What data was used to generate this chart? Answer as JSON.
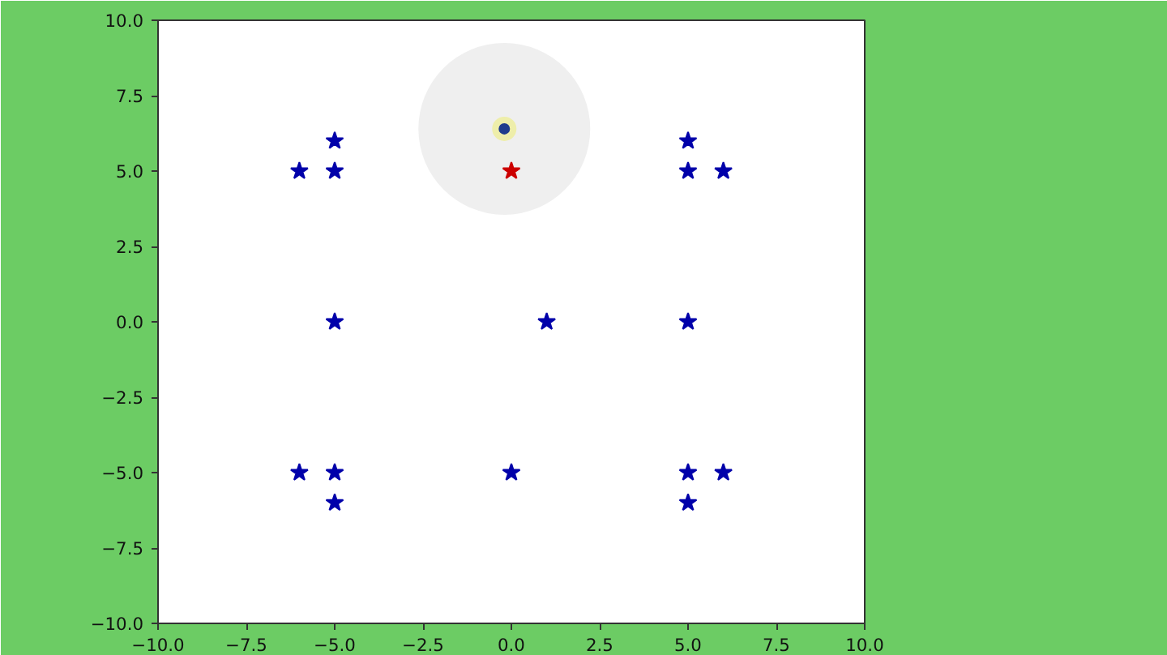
{
  "chart_data": {
    "type": "scatter",
    "xlim": [
      -10,
      10
    ],
    "ylim": [
      -10,
      10
    ],
    "xticks": [
      {
        "value": -10,
        "label": "−10.0"
      },
      {
        "value": -7.5,
        "label": "−7.5"
      },
      {
        "value": -5,
        "label": "−5.0"
      },
      {
        "value": -2.5,
        "label": "−2.5"
      },
      {
        "value": 0,
        "label": "0.0"
      },
      {
        "value": 2.5,
        "label": "2.5"
      },
      {
        "value": 5,
        "label": "5.0"
      },
      {
        "value": 7.5,
        "label": "7.5"
      },
      {
        "value": 10,
        "label": "10.0"
      }
    ],
    "yticks": [
      {
        "value": -10,
        "label": "−10.0"
      },
      {
        "value": -7.5,
        "label": "−7.5"
      },
      {
        "value": -5,
        "label": "−5.0"
      },
      {
        "value": -2.5,
        "label": "−2.5"
      },
      {
        "value": 0,
        "label": "0.0"
      },
      {
        "value": 2.5,
        "label": "2.5"
      },
      {
        "value": 5,
        "label": "5.0"
      },
      {
        "value": 7.5,
        "label": "7.5"
      },
      {
        "value": 10,
        "label": "10.0"
      }
    ],
    "grid": false,
    "series": [
      {
        "type": "bubble",
        "x": [
          -0.2
        ],
        "values": [
          6.4
        ],
        "sizes": [
          1
        ],
        "color": "#efefef"
      },
      {
        "type": "scatter",
        "marker": "circle",
        "color": "#1f3c8c",
        "x": [
          -0.2
        ],
        "values": [
          6.4
        ]
      },
      {
        "type": "scatter",
        "marker": "star",
        "color": "#0000aa",
        "x": [
          -6,
          -5,
          -5,
          5,
          5,
          6,
          -5,
          1,
          5,
          -6,
          -5,
          -5,
          0,
          5,
          6,
          5
        ],
        "values": [
          5,
          5,
          6,
          6,
          5,
          5,
          0,
          0,
          0,
          -5,
          -5,
          -6,
          -5,
          -5,
          -5,
          -6
        ]
      },
      {
        "type": "scatter",
        "marker": "star",
        "color": "#cc0000",
        "x": [
          0
        ],
        "values": [
          5
        ]
      }
    ]
  }
}
